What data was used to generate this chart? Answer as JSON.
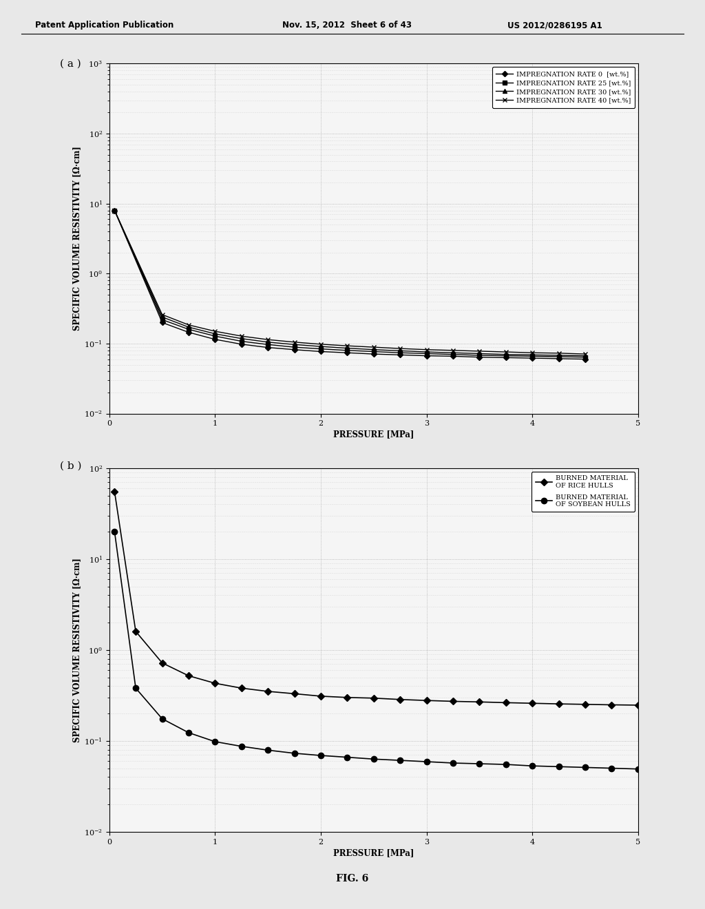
{
  "header_left": "Patent Application Publication",
  "header_mid": "Nov. 15, 2012  Sheet 6 of 43",
  "header_right": "US 2012/0286195 A1",
  "footer_label": "FIG. 6",
  "panel_a": {
    "label": "( a )",
    "xlabel": "PRESSURE [MPa]",
    "ylabel": "SPECIFIC VOLUME RESISTIVITY [Ω·cm]",
    "xlim": [
      0,
      5
    ],
    "ylim": [
      0.01,
      1000
    ],
    "xticks": [
      0,
      1,
      2,
      3,
      4,
      5
    ],
    "xtick_labels": [
      "0",
      "1",
      "2",
      "3",
      "4",
      "5"
    ],
    "series": [
      {
        "name": "IMPREGNATION RATE 0  [wt.%]",
        "marker": "D",
        "markersize": 4,
        "x": [
          0.05,
          0.5,
          0.75,
          1.0,
          1.25,
          1.5,
          1.75,
          2.0,
          2.25,
          2.5,
          2.75,
          3.0,
          3.25,
          3.5,
          3.75,
          4.0,
          4.25,
          4.5
        ],
        "y": [
          8.0,
          0.2,
          0.145,
          0.115,
          0.098,
          0.088,
          0.082,
          0.077,
          0.074,
          0.071,
          0.069,
          0.067,
          0.066,
          0.064,
          0.063,
          0.062,
          0.061,
          0.06
        ]
      },
      {
        "name": "IMPREGNATION RATE 25 [wt.%]",
        "marker": "s",
        "markersize": 4,
        "x": [
          0.05,
          0.5,
          0.75,
          1.0,
          1.25,
          1.5,
          1.75,
          2.0,
          2.25,
          2.5,
          2.75,
          3.0,
          3.25,
          3.5,
          3.75,
          4.0,
          4.25,
          4.5
        ],
        "y": [
          8.0,
          0.22,
          0.16,
          0.128,
          0.108,
          0.097,
          0.089,
          0.084,
          0.08,
          0.077,
          0.074,
          0.072,
          0.07,
          0.068,
          0.067,
          0.066,
          0.065,
          0.064
        ]
      },
      {
        "name": "IMPREGNATION RATE 30 [wt.%]",
        "marker": "^",
        "markersize": 4,
        "x": [
          0.05,
          0.5,
          0.75,
          1.0,
          1.25,
          1.5,
          1.75,
          2.0,
          2.25,
          2.5,
          2.75,
          3.0,
          3.25,
          3.5,
          3.75,
          4.0,
          4.25,
          4.5
        ],
        "y": [
          8.0,
          0.24,
          0.172,
          0.138,
          0.118,
          0.105,
          0.097,
          0.091,
          0.086,
          0.082,
          0.079,
          0.076,
          0.074,
          0.072,
          0.07,
          0.069,
          0.068,
          0.067
        ]
      },
      {
        "name": "IMPREGNATION RATE 40 [wt.%]",
        "marker": "x",
        "markersize": 5,
        "x": [
          0.05,
          0.5,
          0.75,
          1.0,
          1.25,
          1.5,
          1.75,
          2.0,
          2.25,
          2.5,
          2.75,
          3.0,
          3.25,
          3.5,
          3.75,
          4.0,
          4.25,
          4.5
        ],
        "y": [
          8.0,
          0.26,
          0.185,
          0.15,
          0.128,
          0.114,
          0.105,
          0.098,
          0.093,
          0.089,
          0.085,
          0.082,
          0.08,
          0.078,
          0.076,
          0.074,
          0.073,
          0.071
        ]
      }
    ]
  },
  "panel_b": {
    "label": "( b )",
    "xlabel": "PRESSURE [MPa]",
    "ylabel": "SPECIFIC VOLUME RESISTIVITY [Ω·cm]",
    "xlim": [
      0,
      5
    ],
    "ylim": [
      0.01,
      100
    ],
    "xticks": [
      0,
      1,
      2,
      3,
      4,
      5
    ],
    "xtick_labels": [
      "0",
      "1",
      "2",
      "3",
      "4",
      "5"
    ],
    "series": [
      {
        "name": "BURNED MATERIAL\nOF RICE HULLS",
        "marker": "D",
        "markersize": 5,
        "x": [
          0.05,
          0.25,
          0.5,
          0.75,
          1.0,
          1.25,
          1.5,
          1.75,
          2.0,
          2.25,
          2.5,
          2.75,
          3.0,
          3.25,
          3.5,
          3.75,
          4.0,
          4.25,
          4.5,
          4.75,
          5.0
        ],
        "y": [
          55.0,
          1.6,
          0.72,
          0.52,
          0.43,
          0.38,
          0.35,
          0.33,
          0.31,
          0.3,
          0.295,
          0.285,
          0.278,
          0.272,
          0.268,
          0.263,
          0.259,
          0.255,
          0.252,
          0.249,
          0.247
        ]
      },
      {
        "name": "BURNED MATERIAL\nOF SOYBEAN HULLS",
        "marker": "o",
        "markersize": 6,
        "x": [
          0.05,
          0.25,
          0.5,
          0.75,
          1.0,
          1.25,
          1.5,
          1.75,
          2.0,
          2.25,
          2.5,
          2.75,
          3.0,
          3.25,
          3.5,
          3.75,
          4.0,
          4.25,
          4.5,
          4.75,
          5.0
        ],
        "y": [
          20.0,
          0.38,
          0.175,
          0.123,
          0.098,
          0.087,
          0.079,
          0.073,
          0.069,
          0.066,
          0.063,
          0.061,
          0.059,
          0.057,
          0.056,
          0.055,
          0.053,
          0.052,
          0.051,
          0.05,
          0.049
        ]
      }
    ]
  },
  "bg_color": "#e8e8e8",
  "plot_bg_color": "#f5f5f5",
  "line_color": "#000000",
  "grid_color": "#999999",
  "font_size_axis_label": 8.5,
  "font_size_tick": 8,
  "font_size_legend": 7,
  "font_size_header": 8.5,
  "font_size_panel_label": 11
}
